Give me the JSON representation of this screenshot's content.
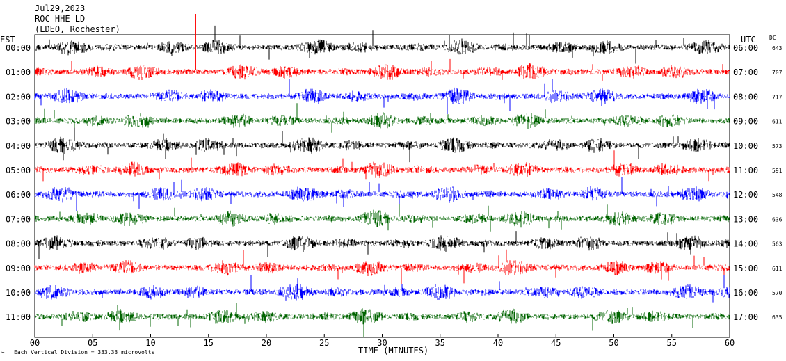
{
  "header": {
    "date": "Jul29,2023",
    "station": "ROC HHE LD --",
    "network": "(LDEO, Rochester)"
  },
  "left_zone_label": "EST",
  "right_zone_label": "UTC",
  "dc_header": "DC",
  "colors": {
    "cycle": [
      "#000000",
      "#ff0000",
      "#0000ff",
      "#006400"
    ],
    "frame": "#000000",
    "marker": "#ff0000"
  },
  "chart_data": {
    "type": "line",
    "title": "ROC HHE LD --",
    "subtitle": "(LDEO, Rochester)",
    "xlabel": "TIME (MINUTES)",
    "xlim": [
      0,
      60
    ],
    "x_ticks": [
      "00",
      "05",
      "10",
      "15",
      "20",
      "25",
      "30",
      "35",
      "40",
      "45",
      "50",
      "55",
      "60"
    ],
    "rows": [
      {
        "est": "00:00",
        "utc": "06:00",
        "dc": "643",
        "color": "black"
      },
      {
        "est": "01:00",
        "utc": "07:00",
        "dc": "707",
        "color": "red"
      },
      {
        "est": "02:00",
        "utc": "08:00",
        "dc": "717",
        "color": "blue"
      },
      {
        "est": "03:00",
        "utc": "09:00",
        "dc": "611",
        "color": "green"
      },
      {
        "est": "04:00",
        "utc": "10:00",
        "dc": "573",
        "color": "black"
      },
      {
        "est": "05:00",
        "utc": "11:00",
        "dc": "591",
        "color": "red"
      },
      {
        "est": "06:00",
        "utc": "12:00",
        "dc": "548",
        "color": "blue"
      },
      {
        "est": "07:00",
        "utc": "13:00",
        "dc": "636",
        "color": "green"
      },
      {
        "est": "08:00",
        "utc": "14:00",
        "dc": "563",
        "color": "black"
      },
      {
        "est": "09:00",
        "utc": "15:00",
        "dc": "611",
        "color": "red"
      },
      {
        "est": "10:00",
        "utc": "16:00",
        "dc": "570",
        "color": "blue"
      },
      {
        "est": "11:00",
        "utc": "17:00",
        "dc": "635",
        "color": "green"
      }
    ],
    "marker_minute": 13.9,
    "grid": false
  },
  "footer": {
    "scale_note": "Each Vertical Division =  333.33 microvolts"
  }
}
